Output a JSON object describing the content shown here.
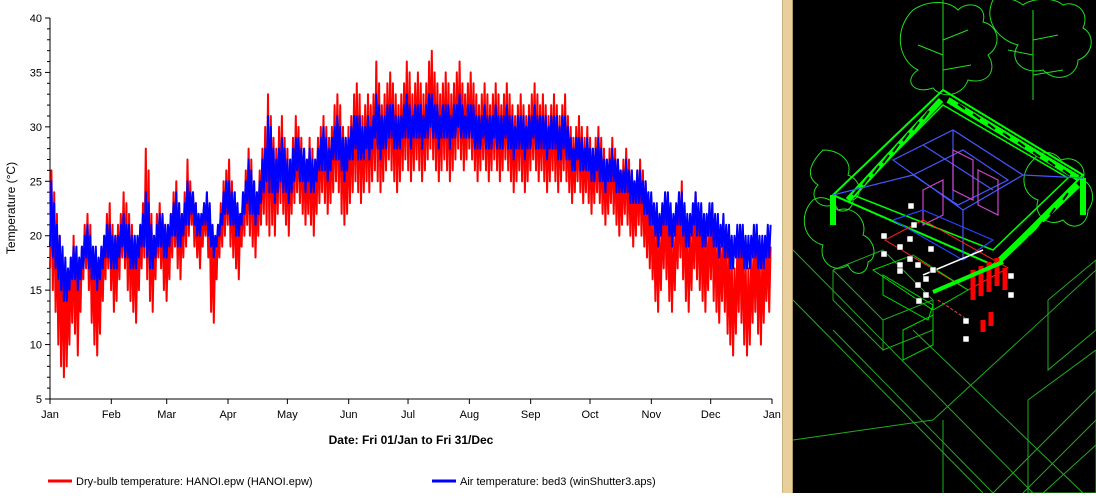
{
  "chart_data": {
    "type": "line",
    "ylabel": "Temperature (°C)",
    "xlabel": "Date: Fri 01/Jan to Fri 31/Dec",
    "ylim": [
      5,
      40
    ],
    "yticks": [
      "5",
      "10",
      "15",
      "20",
      "25",
      "30",
      "35",
      "40"
    ],
    "xticks": [
      "Jan",
      "Feb",
      "Mar",
      "Apr",
      "May",
      "Jun",
      "Jul",
      "Aug",
      "Sep",
      "Oct",
      "Nov",
      "Dec",
      "Jan"
    ],
    "legend_position": "bottom",
    "series": [
      {
        "name": "Dry-bulb temperature: HANOI.epw (HANOI.epw)",
        "color": "#ff0000",
        "daily_min": [
          17,
          15,
          13,
          10,
          8,
          7,
          8,
          10,
          12,
          11,
          9,
          13,
          16,
          17,
          15,
          12,
          10,
          9,
          11,
          14,
          16,
          17,
          15,
          13,
          14,
          16,
          18,
          17,
          15,
          14,
          13,
          12,
          15,
          17,
          18,
          16,
          14,
          13,
          16,
          18,
          17,
          15,
          14,
          16,
          18,
          19,
          17,
          16,
          18,
          19,
          20,
          21,
          19,
          18,
          17,
          19,
          20,
          18,
          13,
          12,
          16,
          18,
          19,
          20,
          21,
          19,
          18,
          17,
          16,
          19,
          20,
          21,
          20,
          19,
          18,
          20,
          21,
          22,
          21,
          20,
          21,
          20,
          22,
          23,
          22,
          21,
          20,
          22,
          23,
          24,
          23,
          22,
          21,
          22,
          21,
          20,
          22,
          23,
          24,
          23,
          22,
          23,
          24,
          25,
          24,
          22,
          21,
          22,
          23,
          24,
          25,
          24,
          23,
          24,
          25,
          24,
          25,
          26,
          25,
          24,
          25,
          26,
          27,
          26,
          25,
          24,
          25,
          26,
          27,
          26,
          25,
          26,
          27,
          26,
          25,
          26,
          27,
          28,
          27,
          26,
          25,
          26,
          27,
          26,
          25,
          26,
          27,
          28,
          27,
          26,
          27,
          28,
          27,
          26,
          25,
          26,
          27,
          26,
          25,
          26,
          27,
          26,
          25,
          26,
          27,
          26,
          25,
          24,
          25,
          26,
          25,
          24,
          25,
          26,
          27,
          26,
          25,
          26,
          25,
          24,
          25,
          26,
          25,
          24,
          25,
          26,
          25,
          24,
          23,
          24,
          25,
          24,
          23,
          24,
          23,
          22,
          23,
          24,
          23,
          22,
          21,
          22,
          23,
          22,
          21,
          20,
          21,
          22,
          21,
          20,
          19,
          20,
          21,
          20,
          19,
          18,
          17,
          16,
          14,
          13,
          15,
          17,
          16,
          14,
          13,
          15,
          17,
          18,
          16,
          14,
          13,
          15,
          17,
          16,
          15,
          14,
          13,
          15,
          16,
          14,
          13,
          12,
          14,
          13,
          11,
          10,
          9,
          11,
          13,
          12,
          10,
          9,
          10,
          12,
          13,
          11,
          10,
          12,
          14,
          13
        ],
        "daily_max": [
          26,
          24,
          22,
          20,
          18,
          17,
          16,
          18,
          20,
          19,
          17,
          19,
          21,
          22,
          21,
          19,
          18,
          17,
          19,
          20,
          22,
          23,
          21,
          20,
          21,
          22,
          24,
          23,
          22,
          21,
          20,
          19,
          21,
          23,
          28,
          26,
          22,
          20,
          22,
          23,
          22,
          21,
          20,
          22,
          24,
          25,
          23,
          22,
          24,
          27,
          25,
          24,
          23,
          22,
          21,
          23,
          24,
          22,
          20,
          19,
          21,
          23,
          25,
          26,
          27,
          25,
          24,
          23,
          22,
          24,
          26,
          28,
          27,
          25,
          24,
          26,
          28,
          30,
          33,
          31,
          29,
          28,
          30,
          31,
          29,
          28,
          27,
          29,
          31,
          30,
          29,
          28,
          27,
          29,
          28,
          27,
          29,
          30,
          31,
          30,
          29,
          30,
          32,
          33,
          32,
          30,
          29,
          30,
          31,
          33,
          34,
          33,
          31,
          32,
          33,
          32,
          33,
          36,
          34,
          32,
          33,
          34,
          35,
          34,
          33,
          32,
          33,
          34,
          36,
          35,
          33,
          34,
          35,
          34,
          33,
          34,
          36,
          37,
          35,
          34,
          33,
          34,
          35,
          34,
          33,
          34,
          35,
          36,
          34,
          33,
          34,
          35,
          34,
          33,
          32,
          33,
          34,
          33,
          32,
          33,
          34,
          33,
          32,
          33,
          34,
          33,
          32,
          31,
          32,
          33,
          32,
          31,
          32,
          33,
          34,
          33,
          32,
          33,
          32,
          31,
          32,
          33,
          32,
          31,
          32,
          33,
          31,
          30,
          29,
          30,
          31,
          30,
          29,
          30,
          29,
          28,
          29,
          30,
          29,
          28,
          27,
          28,
          29,
          28,
          27,
          26,
          27,
          28,
          27,
          26,
          25,
          26,
          27,
          26,
          25,
          24,
          23,
          22,
          21,
          20,
          22,
          24,
          23,
          21,
          20,
          22,
          24,
          25,
          23,
          21,
          20,
          22,
          24,
          23,
          22,
          21,
          20,
          22,
          23,
          21,
          20,
          19,
          21,
          20,
          19,
          18,
          17,
          19,
          21,
          20,
          18,
          17,
          18,
          20,
          21,
          19,
          18,
          19,
          20,
          19
        ]
      },
      {
        "name": "Air temperature: bed3 (winShutter3.aps)",
        "color": "#0000ff",
        "daily_min": [
          19,
          18,
          17,
          16,
          15,
          14,
          14,
          15,
          16,
          16,
          15,
          16,
          17,
          18,
          17,
          16,
          16,
          15,
          16,
          17,
          18,
          18,
          17,
          17,
          17,
          18,
          19,
          18,
          18,
          17,
          17,
          17,
          18,
          19,
          19,
          18,
          17,
          17,
          18,
          19,
          19,
          18,
          18,
          19,
          20,
          20,
          19,
          19,
          20,
          21,
          21,
          22,
          21,
          20,
          20,
          21,
          21,
          20,
          19,
          18,
          19,
          20,
          21,
          22,
          22,
          21,
          21,
          20,
          20,
          21,
          22,
          23,
          22,
          22,
          21,
          22,
          23,
          24,
          25,
          24,
          24,
          23,
          24,
          25,
          24,
          24,
          23,
          24,
          25,
          26,
          25,
          25,
          24,
          25,
          24,
          24,
          25,
          26,
          26,
          26,
          25,
          26,
          27,
          27,
          27,
          26,
          25,
          26,
          27,
          27,
          28,
          27,
          27,
          27,
          28,
          27,
          28,
          29,
          28,
          27,
          28,
          28,
          29,
          29,
          28,
          28,
          28,
          29,
          29,
          29,
          28,
          29,
          29,
          29,
          28,
          29,
          29,
          30,
          29,
          29,
          28,
          29,
          29,
          29,
          28,
          29,
          29,
          30,
          29,
          29,
          29,
          29,
          29,
          28,
          28,
          28,
          29,
          28,
          28,
          28,
          29,
          28,
          28,
          28,
          29,
          28,
          28,
          27,
          28,
          28,
          28,
          27,
          28,
          28,
          29,
          28,
          28,
          28,
          28,
          27,
          28,
          28,
          28,
          27,
          27,
          28,
          27,
          27,
          26,
          26,
          27,
          26,
          26,
          26,
          26,
          25,
          25,
          26,
          25,
          25,
          24,
          25,
          25,
          25,
          24,
          24,
          24,
          24,
          24,
          23,
          23,
          23,
          23,
          23,
          22,
          22,
          21,
          21,
          20,
          19,
          20,
          21,
          21,
          20,
          19,
          20,
          21,
          21,
          20,
          19,
          19,
          20,
          21,
          20,
          20,
          19,
          19,
          20,
          20,
          19,
          19,
          18,
          19,
          18,
          18,
          17,
          17,
          18,
          18,
          18,
          17,
          17,
          17,
          18,
          18,
          17,
          17,
          17,
          18,
          18
        ],
        "daily_max": [
          25,
          23,
          21,
          20,
          19,
          18,
          17,
          18,
          19,
          19,
          18,
          19,
          20,
          21,
          20,
          19,
          19,
          18,
          19,
          20,
          21,
          21,
          20,
          20,
          20,
          21,
          22,
          21,
          21,
          20,
          20,
          20,
          21,
          22,
          24,
          23,
          21,
          20,
          21,
          22,
          22,
          21,
          21,
          22,
          23,
          24,
          23,
          22,
          23,
          25,
          24,
          24,
          23,
          22,
          22,
          23,
          24,
          23,
          21,
          20,
          21,
          22,
          24,
          25,
          25,
          24,
          24,
          23,
          22,
          24,
          25,
          27,
          26,
          25,
          24,
          25,
          27,
          28,
          31,
          30,
          28,
          27,
          28,
          29,
          28,
          27,
          27,
          28,
          29,
          29,
          28,
          28,
          27,
          28,
          27,
          27,
          28,
          29,
          30,
          29,
          28,
          29,
          30,
          31,
          30,
          29,
          29,
          29,
          30,
          31,
          31,
          31,
          30,
          30,
          31,
          30,
          31,
          33,
          32,
          31,
          31,
          32,
          32,
          32,
          31,
          31,
          31,
          32,
          33,
          32,
          31,
          32,
          32,
          32,
          31,
          32,
          33,
          33,
          32,
          32,
          31,
          32,
          32,
          32,
          31,
          32,
          32,
          33,
          32,
          31,
          32,
          32,
          32,
          31,
          31,
          31,
          32,
          31,
          31,
          31,
          32,
          31,
          31,
          31,
          32,
          31,
          31,
          30,
          31,
          31,
          31,
          30,
          31,
          31,
          32,
          31,
          31,
          31,
          31,
          30,
          31,
          31,
          31,
          30,
          31,
          31,
          30,
          29,
          28,
          29,
          29,
          29,
          28,
          29,
          28,
          28,
          28,
          29,
          28,
          27,
          27,
          27,
          28,
          27,
          27,
          26,
          26,
          27,
          26,
          26,
          25,
          26,
          26,
          25,
          25,
          24,
          24,
          23,
          23,
          22,
          23,
          24,
          24,
          23,
          22,
          23,
          24,
          24,
          23,
          22,
          22,
          23,
          24,
          23,
          23,
          22,
          22,
          23,
          23,
          22,
          22,
          21,
          22,
          21,
          21,
          20,
          20,
          21,
          21,
          21,
          20,
          20,
          20,
          21,
          21,
          20,
          20,
          20,
          21,
          21
        ]
      }
    ]
  }
}
